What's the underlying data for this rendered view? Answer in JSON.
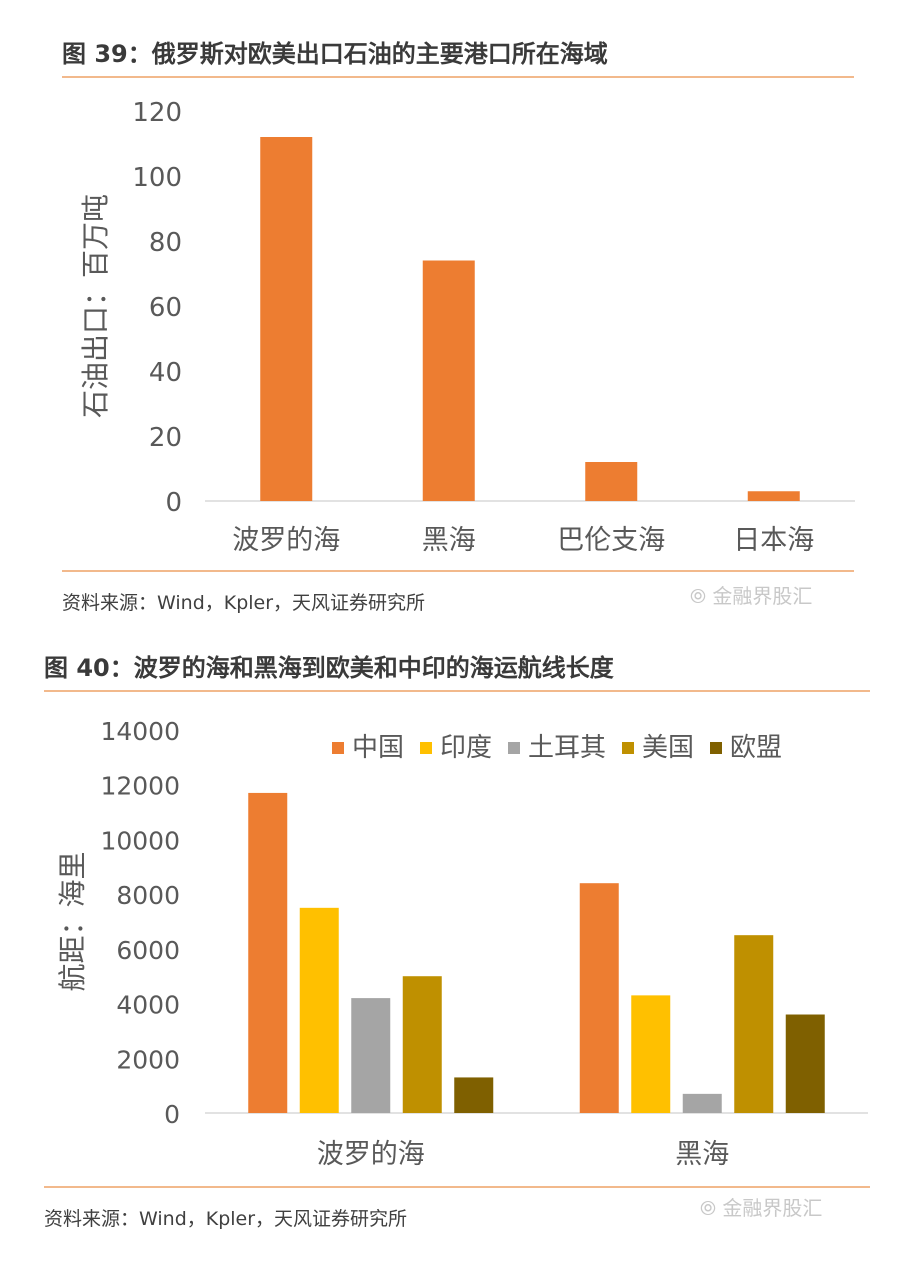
{
  "figure39": {
    "title": "图 39：俄罗斯对欧美出口石油的主要港口所在海域",
    "source": "资料来源：Wind，Kpler，天风证券研究所",
    "watermark": "⦾ 金融界股汇"
  },
  "figure40": {
    "title": "图 40：波罗的海和黑海到欧美和中印的海运航线长度",
    "source": "资料来源：Wind，Kpler，天风证券研究所",
    "watermark": "⦾ 金融界股汇"
  },
  "colors": {
    "orange": "#ed7d31",
    "yellow": "#ffc000",
    "gray": "#a5a5a5",
    "gold": "#bf9000",
    "brown": "#7f6000",
    "rule": "#f2b98c",
    "axis_text": "#595959"
  },
  "chart_data": [
    {
      "type": "bar",
      "categories": [
        "波罗的海",
        "黑海",
        "巴伦支海",
        "日本海"
      ],
      "values": [
        112,
        74,
        12,
        3
      ],
      "ylabel": "石油出口：百万吨",
      "ylim": [
        0,
        120
      ],
      "yticks": [
        0,
        20,
        40,
        60,
        80,
        100,
        120
      ],
      "grid": false,
      "colors": [
        "#ed7d31"
      ]
    },
    {
      "type": "bar",
      "categories": [
        "波罗的海",
        "黑海"
      ],
      "series": [
        {
          "name": "中国",
          "values": [
            11700,
            8400
          ],
          "color": "#ed7d31"
        },
        {
          "name": "印度",
          "values": [
            7500,
            4300
          ],
          "color": "#ffc000"
        },
        {
          "name": "土耳其",
          "values": [
            4200,
            700
          ],
          "color": "#a5a5a5"
        },
        {
          "name": "美国",
          "values": [
            5000,
            6500
          ],
          "color": "#bf9000"
        },
        {
          "name": "欧盟",
          "values": [
            1300,
            3600
          ],
          "color": "#7f6000"
        }
      ],
      "ylabel": "航距：海里",
      "ylim": [
        0,
        14000
      ],
      "yticks": [
        0,
        2000,
        4000,
        6000,
        8000,
        10000,
        12000,
        14000
      ],
      "grid": false,
      "legend": "top-right"
    }
  ]
}
